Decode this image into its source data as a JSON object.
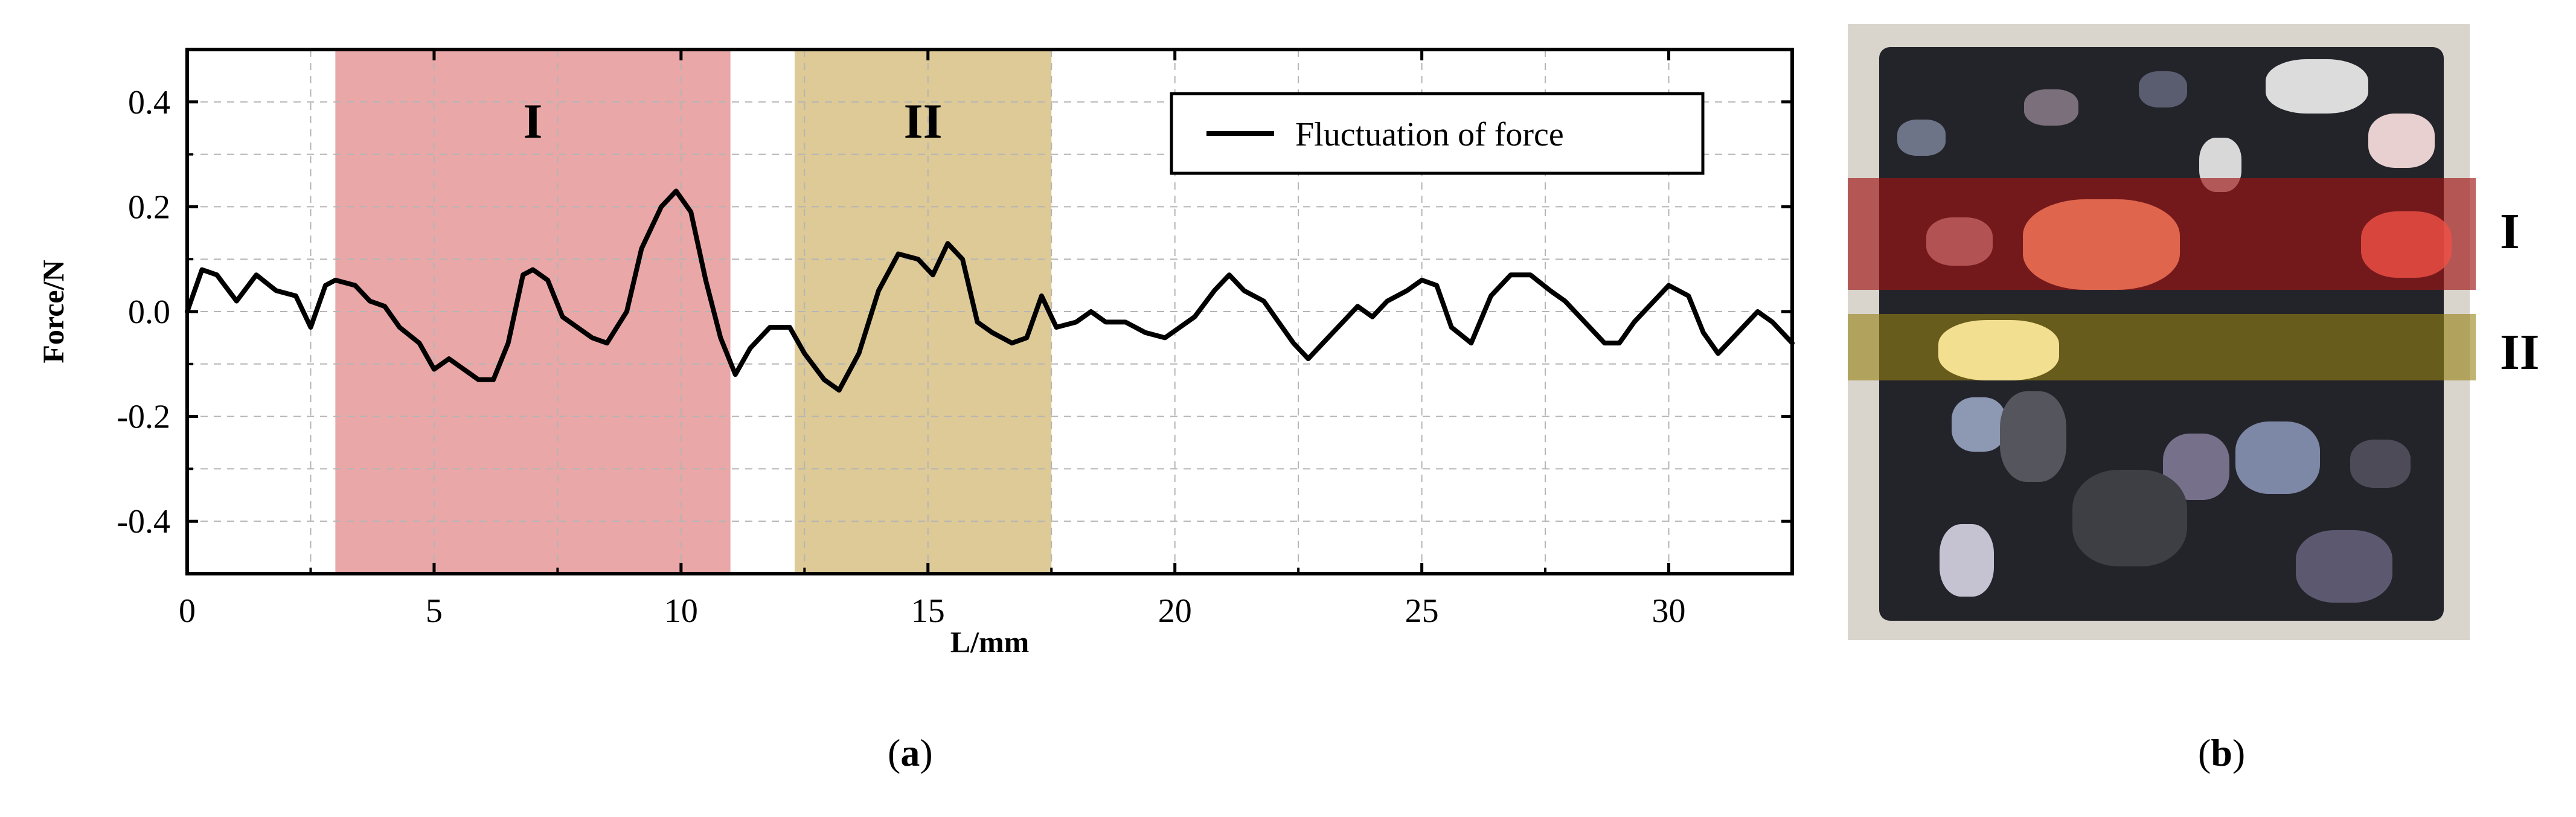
{
  "chart_data": {
    "type": "line",
    "title": "",
    "xlabel": "L/mm",
    "ylabel": "Force/N",
    "xlim": [
      0,
      32.5
    ],
    "ylim": [
      -0.5,
      0.5
    ],
    "xticks": [
      0,
      5,
      10,
      15,
      20,
      25,
      30
    ],
    "xtick_labels": [
      "0",
      "5",
      "10",
      "15",
      "20",
      "25",
      "30"
    ],
    "yticks": [
      0.4,
      0.2,
      0.0,
      -0.2,
      -0.4
    ],
    "ytick_labels": [
      "0.4",
      "0.2",
      "0.0",
      "-0.2",
      "-0.4"
    ],
    "grid": true,
    "legend_position": "top-right",
    "series": [
      {
        "name": "Fluctuation of force",
        "color": "#000000",
        "x": [
          0,
          0.3,
          0.6,
          1.0,
          1.4,
          1.8,
          2.2,
          2.5,
          2.8,
          3.0,
          3.4,
          3.7,
          4.0,
          4.3,
          4.7,
          5.0,
          5.3,
          5.6,
          5.9,
          6.2,
          6.5,
          6.8,
          7.0,
          7.3,
          7.6,
          7.9,
          8.2,
          8.5,
          8.9,
          9.2,
          9.6,
          9.9,
          10.2,
          10.5,
          10.8,
          11.1,
          11.4,
          11.8,
          12.2,
          12.5,
          12.9,
          13.2,
          13.6,
          14.0,
          14.4,
          14.8,
          15.1,
          15.4,
          15.7,
          16.0,
          16.3,
          16.7,
          17.0,
          17.3,
          17.6,
          18.0,
          18.3,
          18.6,
          19.0,
          19.4,
          19.8,
          20.1,
          20.4,
          20.8,
          21.1,
          21.4,
          21.8,
          22.1,
          22.4,
          22.7,
          23.1,
          23.4,
          23.7,
          24.0,
          24.3,
          24.7,
          25.0,
          25.3,
          25.6,
          26.0,
          26.4,
          26.8,
          27.2,
          27.6,
          27.9,
          28.3,
          28.7,
          29.0,
          29.3,
          29.7,
          30.0,
          30.4,
          30.7,
          31.0,
          31.4,
          31.8,
          32.1,
          32.5
        ],
        "y": [
          0.0,
          0.08,
          0.07,
          0.02,
          0.07,
          0.04,
          0.03,
          -0.03,
          0.05,
          0.06,
          0.05,
          0.02,
          0.01,
          -0.03,
          -0.06,
          -0.11,
          -0.09,
          -0.11,
          -0.13,
          -0.13,
          -0.06,
          0.07,
          0.08,
          0.06,
          -0.01,
          -0.03,
          -0.05,
          -0.06,
          0.0,
          0.12,
          0.2,
          0.23,
          0.19,
          0.06,
          -0.05,
          -0.12,
          -0.07,
          -0.03,
          -0.03,
          -0.08,
          -0.13,
          -0.15,
          -0.08,
          0.04,
          0.11,
          0.1,
          0.07,
          0.13,
          0.1,
          -0.02,
          -0.04,
          -0.06,
          -0.05,
          0.03,
          -0.03,
          -0.02,
          0.0,
          -0.02,
          -0.02,
          -0.04,
          -0.05,
          -0.03,
          -0.01,
          0.04,
          0.07,
          0.04,
          0.02,
          -0.02,
          -0.06,
          -0.09,
          -0.05,
          -0.02,
          0.01,
          -0.01,
          0.02,
          0.04,
          0.06,
          0.05,
          -0.03,
          -0.06,
          0.03,
          0.07,
          0.07,
          0.04,
          0.02,
          -0.02,
          -0.06,
          -0.06,
          -0.02,
          0.02,
          0.05,
          0.03,
          -0.04,
          -0.08,
          -0.04,
          0.0,
          -0.02,
          -0.06
        ]
      }
    ],
    "regions": [
      {
        "label": "I",
        "x_start": 3.0,
        "x_end": 11.0,
        "color": "#e38a8a"
      },
      {
        "label": "II",
        "x_start": 12.3,
        "x_end": 17.5,
        "color": "#cfb36a"
      }
    ]
  },
  "captions": {
    "panel_a": "(a)",
    "panel_b": "(b)",
    "paren_open": "(",
    "paren_close": ")",
    "letter_a": "a",
    "letter_b": "b"
  },
  "photo": {
    "zone_labels": [
      "I",
      "II"
    ],
    "zone_colors": [
      "#8b1a1a",
      "#8a7a1a"
    ]
  }
}
